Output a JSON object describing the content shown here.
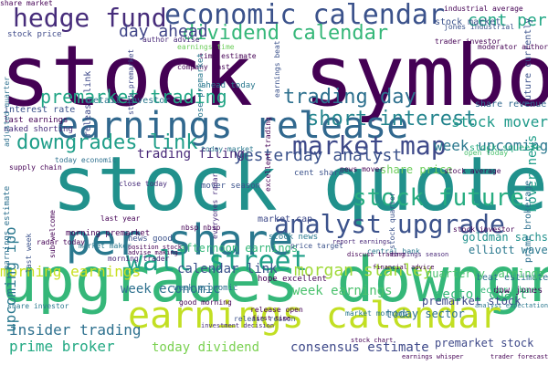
{
  "words": [
    {
      "text": "stock symbol",
      "color": "#440154"
    },
    {
      "text": "stock quote",
      "color": "#21918c"
    },
    {
      "text": "upgrades downgrades",
      "color": "#35b779"
    },
    {
      "text": "earnings release",
      "color": "#31688e"
    },
    {
      "text": "per share",
      "color": "#2a788e"
    },
    {
      "text": "economic calendar",
      "color": "#3b528b"
    },
    {
      "text": "hedge fund",
      "color": "#472d7b"
    },
    {
      "text": "earnings calendar",
      "color": "#c2df23"
    },
    {
      "text": "analyst upgrade",
      "color": "#3b528b"
    },
    {
      "text": "market map",
      "color": "#3e4989"
    },
    {
      "text": "short interest",
      "color": "#25858e"
    },
    {
      "text": "downgrades link",
      "color": "#1f9e89"
    },
    {
      "text": "stock future",
      "color": "#27ad81"
    },
    {
      "text": "dividend calendar",
      "color": "#35b779"
    },
    {
      "text": "trading day",
      "color": "#2d708e"
    },
    {
      "text": "wall street",
      "color": "#1fa088"
    },
    {
      "text": "premarket trading",
      "color": "#21a585"
    },
    {
      "text": "day ahead",
      "color": "#404588"
    },
    {
      "text": "yesterday analyst",
      "color": "#3b528b"
    },
    {
      "text": "trading filing",
      "color": "#482878"
    },
    {
      "text": "morning earnings",
      "color": "#c8e020"
    },
    {
      "text": "insider trading",
      "color": "#2d708e"
    },
    {
      "text": "prime broker",
      "color": "#23a983"
    },
    {
      "text": "cent per",
      "color": "#22a785"
    },
    {
      "text": "week upcoming",
      "color": "#2a788e"
    },
    {
      "text": "stock mover",
      "color": "#1f9a8a"
    },
    {
      "text": "morgan stanley",
      "color": "#a0da39"
    },
    {
      "text": "consensus estimate",
      "color": "#3e4989"
    },
    {
      "text": "today dividend",
      "color": "#7ad151"
    },
    {
      "text": "week earnings",
      "color": "#4ac16d"
    },
    {
      "text": "calendar link",
      "color": "#3b528b"
    },
    {
      "text": "upcoming ipo",
      "color": "#2a788e"
    },
    {
      "text": "share revenue",
      "color": "#31688e"
    },
    {
      "text": "stock squeeze",
      "color": "#27ad81"
    },
    {
      "text": "sector chart",
      "color": "#35b779"
    },
    {
      "text": "week economic",
      "color": "#2d708e"
    },
    {
      "text": "mover news",
      "color": "#1f9e89"
    },
    {
      "text": "premarket stock",
      "color": "#3e4989"
    },
    {
      "text": "stock market",
      "color": "#3b528b"
    },
    {
      "text": "earnings time",
      "color": "#6ccd5a"
    },
    {
      "text": "company last",
      "color": "#440154"
    },
    {
      "text": "interest rate",
      "color": "#3b528b"
    },
    {
      "text": "last earnings",
      "color": "#440154"
    },
    {
      "text": "naked shorting",
      "color": "#472d7b"
    },
    {
      "text": "retail investor",
      "color": "#2a788e"
    },
    {
      "text": "stock price",
      "color": "#3e4989"
    },
    {
      "text": "trader investor",
      "color": "#440154"
    },
    {
      "text": "goldman sachs",
      "color": "#21918c"
    },
    {
      "text": "elliott wave",
      "color": "#2a788e"
    },
    {
      "text": "dow jones",
      "color": "#440154"
    },
    {
      "text": "beat estimate",
      "color": "#2d708e"
    },
    {
      "text": "sector chart",
      "color": "#35b779"
    },
    {
      "text": "open today",
      "color": "#4ac16d"
    },
    {
      "text": "jones industrial",
      "color": "#3b528b"
    },
    {
      "text": "industrial average",
      "color": "#440154"
    },
    {
      "text": "close today",
      "color": "#472d7b"
    },
    {
      "text": "today market",
      "color": "#2a788e"
    },
    {
      "text": "today economic",
      "color": "#2d708e"
    },
    {
      "text": "supply chain",
      "color": "#440154"
    },
    {
      "text": "earnings estimate",
      "color": "#2d708e"
    },
    {
      "text": "last week",
      "color": "#3b528b"
    },
    {
      "text": "radar today",
      "color": "#440154"
    },
    {
      "text": "market maker",
      "color": "#2a788e"
    },
    {
      "text": "morning trader",
      "color": "#482878"
    },
    {
      "text": "afternoon earnings",
      "color": "#35b779"
    },
    {
      "text": "market cap",
      "color": "#3e4989"
    },
    {
      "text": "premarket stock",
      "color": "#3e4989"
    },
    {
      "text": "quarterly earnings",
      "color": "#4ac16d"
    },
    {
      "text": "stock news",
      "color": "#2a788e"
    },
    {
      "text": "hope excellent",
      "color": "#440154"
    },
    {
      "text": "release open",
      "color": "#440154"
    },
    {
      "text": "cent share",
      "color": "#3b528b"
    },
    {
      "text": "share price",
      "color": "#6ccd5a"
    },
    {
      "text": "news mover",
      "color": "#440154"
    },
    {
      "text": "time estimate",
      "color": "#440154"
    },
    {
      "text": "ahead today",
      "color": "#2a788e"
    },
    {
      "text": "author advise",
      "color": "#482878"
    },
    {
      "text": "release link",
      "color": "#3e4989"
    },
    {
      "text": "today sector",
      "color": "#2d708e"
    },
    {
      "text": "mover season",
      "color": "#3b528b"
    },
    {
      "text": "news good",
      "color": "#3b528b"
    },
    {
      "text": "position stock",
      "color": "#440154"
    },
    {
      "text": "morning premarket",
      "color": "#440154"
    },
    {
      "text": "advise making",
      "color": "#440154"
    },
    {
      "text": "share investor",
      "color": "#2a788e"
    },
    {
      "text": "week economic",
      "color": "#2d708e"
    },
    {
      "text": "last year",
      "color": "#440154"
    },
    {
      "text": "sub welcome",
      "color": "#440154"
    },
    {
      "text": "price target",
      "color": "#3b528b"
    },
    {
      "text": "release reason",
      "color": "#3b528b"
    },
    {
      "text": "investment decision",
      "color": "#472d7b"
    },
    {
      "text": "first time",
      "color": "#440154"
    },
    {
      "text": "good morning",
      "color": "#440154"
    },
    {
      "text": "market morning",
      "color": "#2a788e"
    },
    {
      "text": "stock average",
      "color": "#440154"
    },
    {
      "text": "stock chart",
      "color": "#440154"
    },
    {
      "text": "future currently",
      "color": "#3b528b"
    },
    {
      "text": "prime brokerage",
      "color": "#2d708e"
    },
    {
      "text": "report earnings",
      "color": "#482878"
    },
    {
      "text": "everyones radar",
      "color": "#472d7b"
    },
    {
      "text": "nbsp nbsp",
      "color": "#440154"
    },
    {
      "text": "earnings beat",
      "color": "#3b528b"
    },
    {
      "text": "stock premarket",
      "color": "#3e4989"
    },
    {
      "text": "rose premarket",
      "color": "#2a788e"
    },
    {
      "text": "adjusted quarter",
      "color": "#2d708e"
    },
    {
      "text": "excellent trading",
      "color": "#440154"
    },
    {
      "text": "moderator author",
      "color": "#440154"
    },
    {
      "text": "stock quarter",
      "color": "#3b528b"
    },
    {
      "text": "stock investor",
      "color": "#440154"
    },
    {
      "text": "central bank",
      "color": "#2a788e"
    },
    {
      "text": "analyst expectation",
      "color": "#2a788e"
    },
    {
      "text": "financial advice",
      "color": "#440154"
    },
    {
      "text": "earnings season",
      "color": "#482878"
    },
    {
      "text": "earnings whisper",
      "color": "#440154"
    },
    {
      "text": "trader forecast",
      "color": "#440154"
    },
    {
      "text": "discuss trading",
      "color": "#440154"
    },
    {
      "text": "share market",
      "color": "#440154"
    }
  ]
}
